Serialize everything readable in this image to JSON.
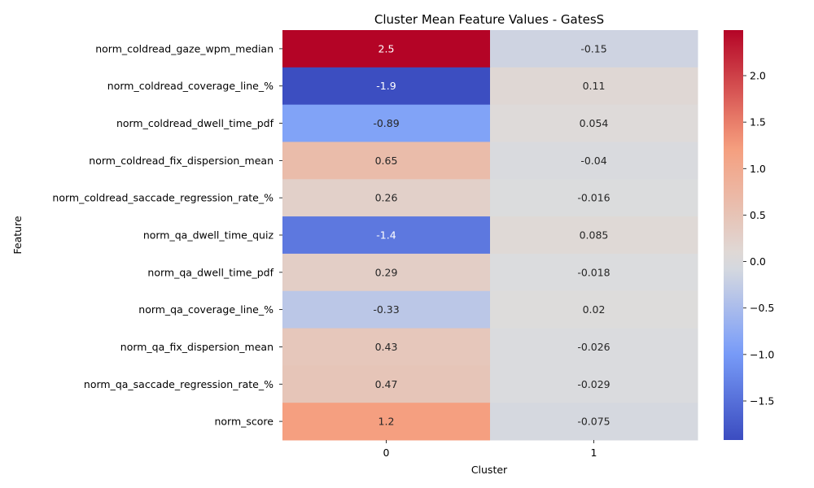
{
  "chart_data": {
    "type": "heatmap",
    "title": "Cluster Mean Feature Values - GatesS",
    "xlabel": "Cluster",
    "ylabel": "Feature",
    "x_categories": [
      "0",
      "1"
    ],
    "y_categories": [
      "norm_coldread_gaze_wpm_median",
      "norm_coldread_coverage_line_%",
      "norm_coldread_dwell_time_pdf",
      "norm_coldread_fix_dispersion_mean",
      "norm_coldread_saccade_regression_rate_%",
      "norm_qa_dwell_time_quiz",
      "norm_qa_dwell_time_pdf",
      "norm_qa_coverage_line_%",
      "norm_qa_fix_dispersion_mean",
      "norm_qa_saccade_regression_rate_%",
      "norm_score"
    ],
    "values": [
      [
        2.5,
        -0.15
      ],
      [
        -1.9,
        0.11
      ],
      [
        -0.89,
        0.054
      ],
      [
        0.65,
        -0.04
      ],
      [
        0.26,
        -0.016
      ],
      [
        -1.4,
        0.085
      ],
      [
        0.29,
        -0.018
      ],
      [
        -0.33,
        0.02
      ],
      [
        0.43,
        -0.026
      ],
      [
        0.47,
        -0.029
      ],
      [
        1.2,
        -0.075
      ]
    ],
    "annotations": [
      [
        "2.5",
        "-0.15"
      ],
      [
        "-1.9",
        "0.11"
      ],
      [
        "-0.89",
        "0.054"
      ],
      [
        "0.65",
        "-0.04"
      ],
      [
        "0.26",
        "-0.016"
      ],
      [
        "-1.4",
        "0.085"
      ],
      [
        "0.29",
        "-0.018"
      ],
      [
        "-0.33",
        "0.02"
      ],
      [
        "0.43",
        "-0.026"
      ],
      [
        "0.47",
        "-0.029"
      ],
      [
        "1.2",
        "-0.075"
      ]
    ],
    "colormap": "coolwarm",
    "center": 0,
    "vmin": -1.92,
    "vmax": 2.49,
    "colorbar_ticks": [
      -1.5,
      -1.0,
      -0.5,
      0.0,
      0.5,
      1.0,
      1.5,
      2.0
    ],
    "colorbar_tick_labels": [
      "−1.5",
      "−1.0",
      "−0.5",
      "0.0",
      "0.5",
      "1.0",
      "1.5",
      "2.0"
    ]
  }
}
